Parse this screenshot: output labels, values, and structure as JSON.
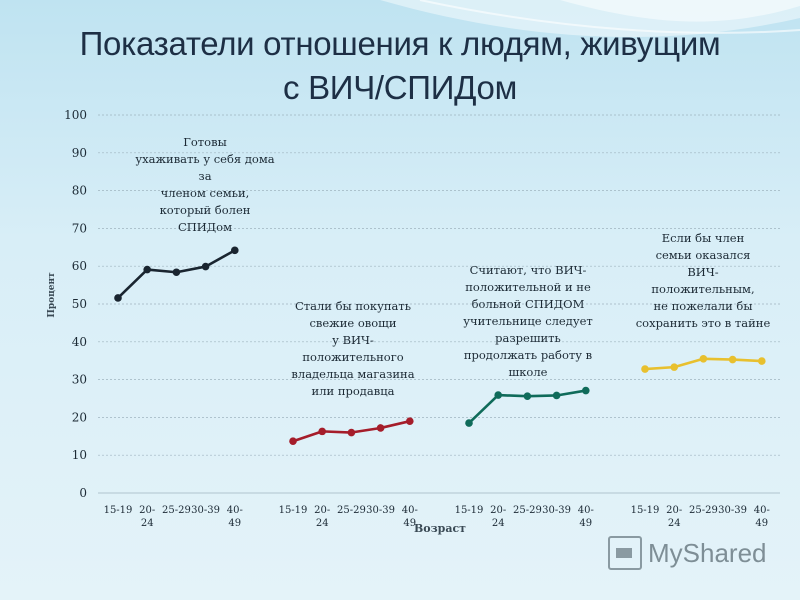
{
  "title_line1": "Показатели отношения к людям, живущим",
  "title_line2": "с ВИЧ/СПИДом",
  "watermark": "MyShared",
  "chart_data": {
    "type": "line",
    "ylabel": "Процент",
    "xlabel": "Возраст",
    "ylim": [
      0,
      100
    ],
    "yticks": [
      0,
      10,
      20,
      30,
      40,
      50,
      60,
      70,
      80,
      90,
      100
    ],
    "grid": true,
    "categories": [
      "15-19",
      "20-24",
      "25-29",
      "30-39",
      "40-49"
    ],
    "tick_lines": [
      [
        "15-19"
      ],
      [
        "20-",
        "24"
      ],
      [
        "25-29"
      ],
      [
        "30-39"
      ],
      [
        "40-",
        "49"
      ]
    ],
    "series": [
      {
        "color": "#1a2530",
        "values": [
          51.6,
          59.1,
          58.4,
          59.9,
          64.2
        ],
        "annotation": [
          "Готовы",
          "ухаживать у себя дома",
          "за",
          "членом семьи,",
          "который болен",
          "СПИДом"
        ]
      },
      {
        "color": "#a51d2a",
        "values": [
          13.7,
          16.3,
          16.0,
          17.2,
          19.0
        ],
        "annotation": [
          "Стали бы покупать",
          "свежие овощи",
          "у ВИЧ-",
          "положительного",
          "владельца     магазина",
          "или продавца"
        ]
      },
      {
        "color": "#0f6b5a",
        "values": [
          18.5,
          25.9,
          25.6,
          25.8,
          27.1
        ],
        "annotation": [
          "Считают, что ВИЧ-",
          "положительной и не",
          "больной СПИДОМ",
          "учительнице следует",
          "разрешить",
          "продолжать работу в",
          "школе"
        ]
      },
      {
        "color": "#e8c02e",
        "values": [
          32.8,
          33.3,
          35.5,
          35.3,
          34.9
        ],
        "annotation": [
          "Если бы член",
          "семьи оказался",
          "ВИЧ-",
          "положительным,",
          "не пожелали бы",
          "сохранить это в тайне"
        ]
      }
    ]
  }
}
